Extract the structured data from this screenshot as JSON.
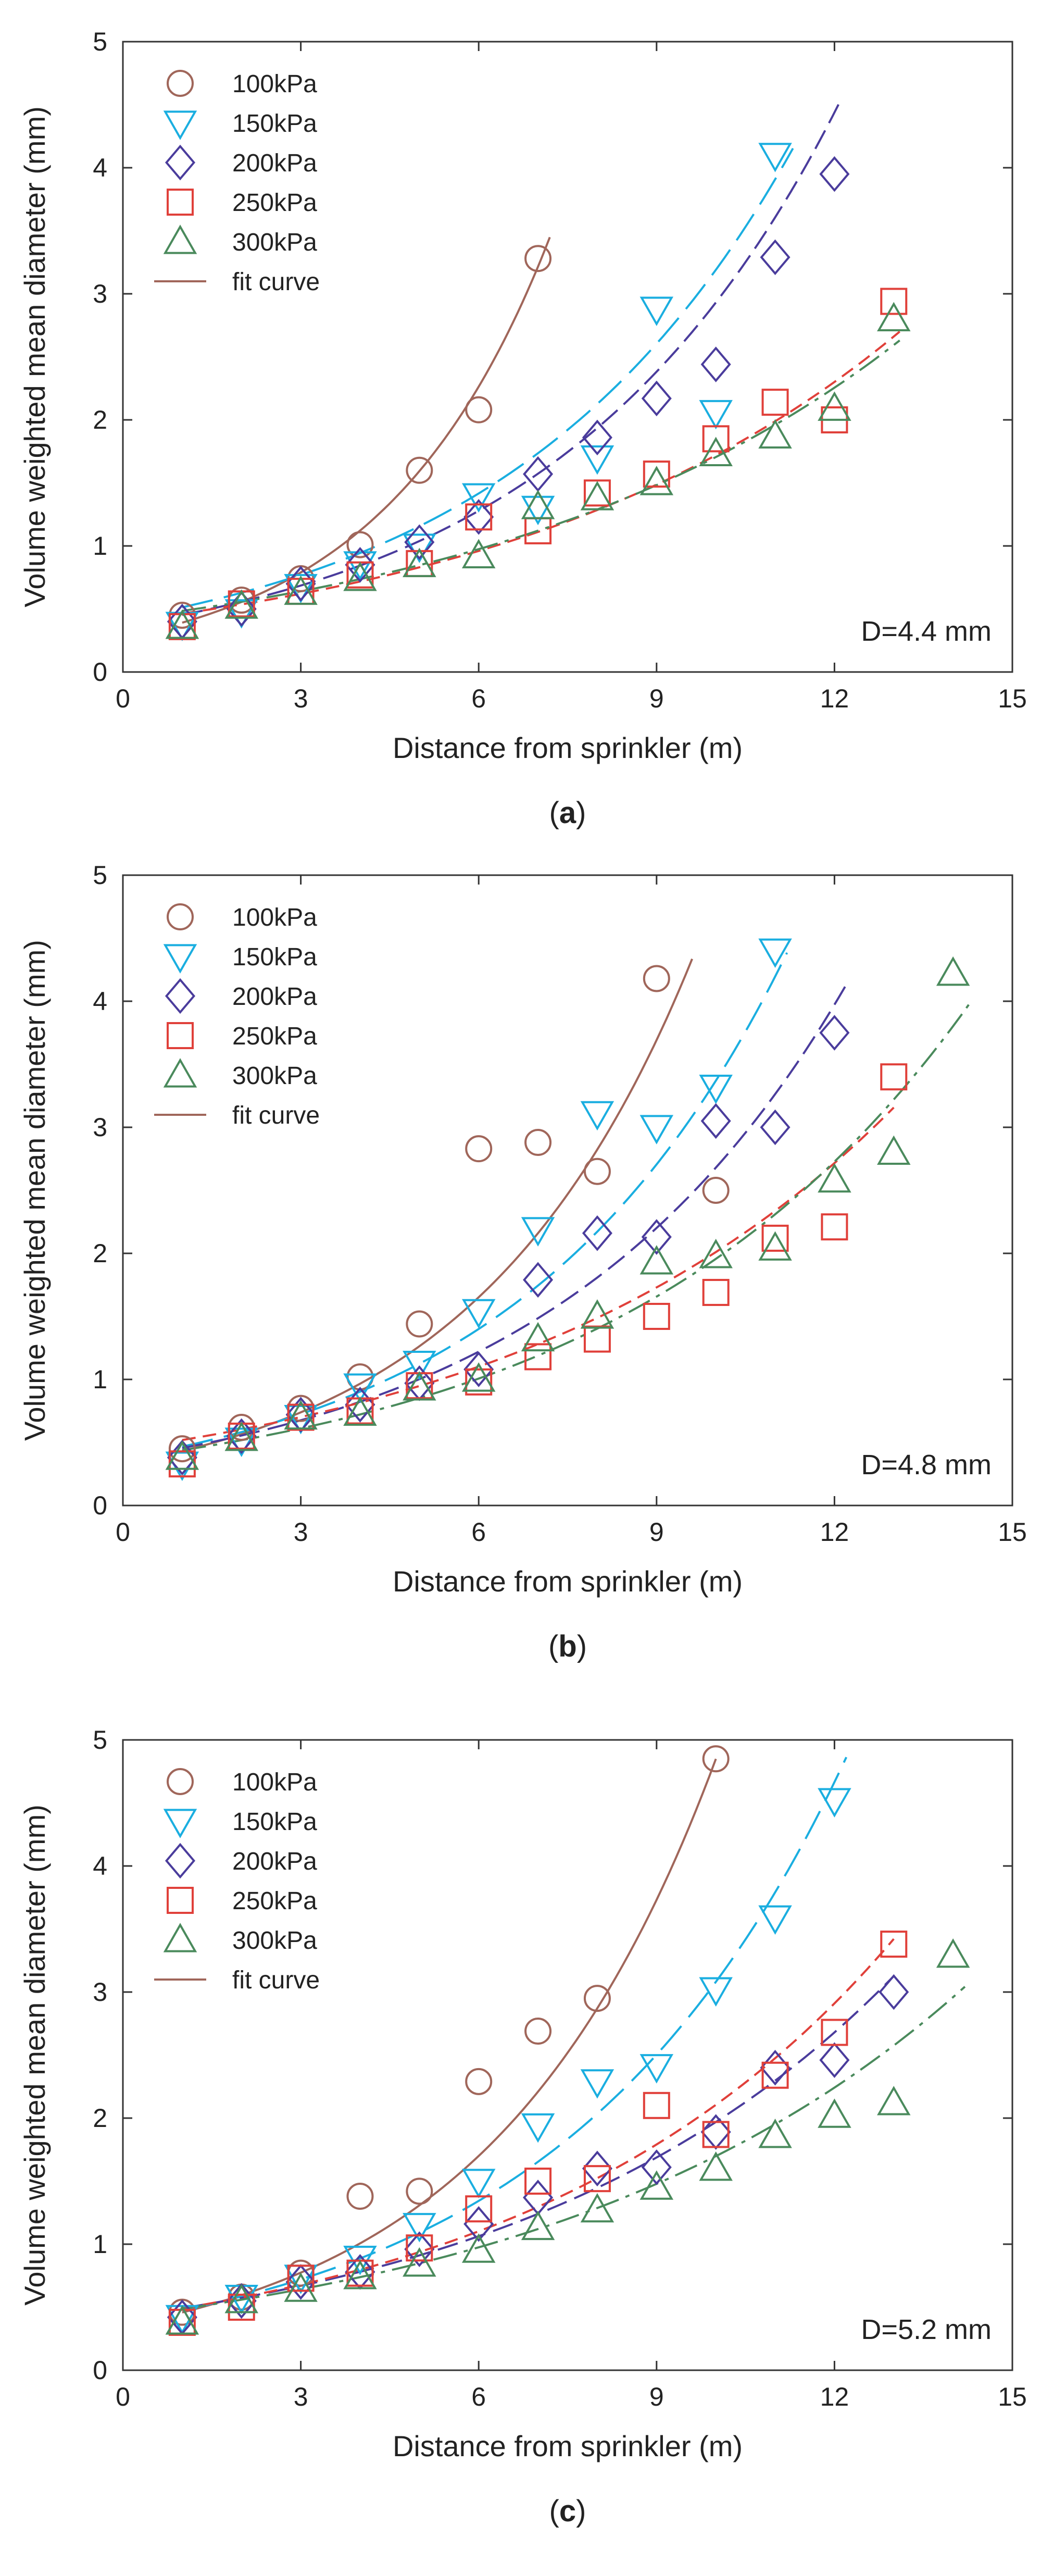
{
  "chart_data": [
    {
      "type": "scatter",
      "panel_label": "a",
      "annotation": "D=4.4 mm",
      "xlabel": "Distance from sprinkler (m)",
      "ylabel": "Volume weighted mean diameter (mm)",
      "xlim": [
        0,
        15
      ],
      "ylim": [
        0,
        5
      ],
      "xticks": [
        "0",
        "3",
        "6",
        "9",
        "12",
        "15"
      ],
      "yticks": [
        "0",
        "1",
        "2",
        "3",
        "4",
        "5"
      ],
      "grid": false,
      "legend_position": "top-left",
      "fit_label": "fit curve",
      "series": [
        {
          "name": "100kPa",
          "marker": "circle",
          "color": "#a0665a",
          "x": [
            1,
            2,
            3,
            4,
            5,
            6,
            7
          ],
          "y": [
            0.45,
            0.57,
            0.74,
            1.01,
            1.6,
            2.08,
            3.28
          ],
          "fit": {
            "a": 0.2755,
            "b": 0.351,
            "x_end": 7.2
          }
        },
        {
          "name": "150kPa",
          "marker": "triangle-down",
          "color": "#1aaee0",
          "x": [
            1,
            2,
            3,
            4,
            5,
            6,
            7,
            8,
            9,
            10,
            11
          ],
          "y": [
            0.38,
            0.48,
            0.68,
            0.86,
            1.0,
            1.4,
            1.3,
            1.7,
            2.88,
            2.06,
            4.1
          ],
          "fit": {
            "a": 0.419,
            "b": 0.203,
            "x_end": 11.3
          }
        },
        {
          "name": "200kPa",
          "marker": "diamond",
          "color": "#4a3c9c",
          "x": [
            1,
            2,
            3,
            4,
            5,
            6,
            7,
            8,
            9,
            10,
            11,
            12
          ],
          "y": [
            0.4,
            0.5,
            0.7,
            0.85,
            1.03,
            1.23,
            1.57,
            1.86,
            2.17,
            2.44,
            3.29,
            3.95
          ],
          "fit": {
            "a": 0.368,
            "b": 0.2075,
            "x_end": 12.1
          }
        },
        {
          "name": "250kPa",
          "marker": "square",
          "color": "#e0403a",
          "x": [
            1,
            2,
            3,
            4,
            5,
            6,
            7,
            8,
            9,
            10,
            11,
            12,
            13
          ],
          "y": [
            0.36,
            0.54,
            0.64,
            0.77,
            0.86,
            1.23,
            1.12,
            1.42,
            1.57,
            1.85,
            2.14,
            2.0,
            2.94
          ],
          "fit": {
            "a": 0.4009,
            "b": 0.1456,
            "x_end": 13.1
          }
        },
        {
          "name": "300kPa",
          "marker": "triangle-up",
          "color": "#4a8a5c",
          "x": [
            1,
            2,
            3,
            4,
            5,
            6,
            7,
            8,
            9,
            10,
            11,
            12,
            13
          ],
          "y": [
            0.36,
            0.52,
            0.63,
            0.74,
            0.85,
            0.92,
            1.31,
            1.38,
            1.5,
            1.73,
            1.87,
            2.09,
            2.8
          ],
          "fit": {
            "a": 0.4213,
            "b": 0.1398,
            "x_end": 13.1
          }
        }
      ]
    },
    {
      "type": "scatter",
      "panel_label": "b",
      "annotation": "D=4.8 mm",
      "xlabel": "Distance from sprinkler (m)",
      "ylabel": "Volume weighted mean diameter (mm)",
      "xlim": [
        0,
        15
      ],
      "ylim": [
        0,
        5
      ],
      "xticks": [
        "0",
        "3",
        "6",
        "9",
        "12",
        "15"
      ],
      "yticks": [
        "0",
        "1",
        "2",
        "3",
        "4",
        "5"
      ],
      "grid": false,
      "legend_position": "top-left",
      "fit_label": "fit curve",
      "series": [
        {
          "name": "100kPa",
          "marker": "circle",
          "color": "#a0665a",
          "x": [
            1,
            2,
            3,
            4,
            5,
            6,
            7,
            8,
            9,
            10
          ],
          "y": [
            0.45,
            0.62,
            0.77,
            1.02,
            1.44,
            2.83,
            2.88,
            2.65,
            4.18,
            2.5
          ],
          "fit": {
            "a": 0.3306,
            "b": 0.2681,
            "x_end": 9.6
          }
        },
        {
          "name": "150kPa",
          "marker": "triangle-down",
          "color": "#1aaee0",
          "x": [
            1,
            2,
            3,
            4,
            5,
            6,
            7,
            8,
            9,
            10,
            11
          ],
          "y": [
            0.33,
            0.52,
            0.7,
            0.95,
            1.13,
            1.54,
            2.19,
            3.11,
            3.0,
            3.32,
            4.4
          ],
          "fit": {
            "a": 0.3752,
            "b": 0.2195,
            "x_end": 11.2
          }
        },
        {
          "name": "200kPa",
          "marker": "diamond",
          "color": "#4a3c9c",
          "x": [
            1,
            2,
            3,
            4,
            5,
            6,
            7,
            8,
            9,
            10,
            11,
            12
          ],
          "y": [
            0.38,
            0.55,
            0.72,
            0.8,
            0.97,
            1.08,
            1.79,
            2.16,
            2.13,
            3.05,
            3.0,
            3.75
          ],
          "fit": {
            "a": 0.3745,
            "b": 0.1968,
            "x_end": 12.2
          }
        },
        {
          "name": "250kPa",
          "marker": "square",
          "color": "#e0403a",
          "x": [
            1,
            2,
            3,
            4,
            5,
            6,
            7,
            8,
            9,
            10,
            11,
            12,
            13
          ],
          "y": [
            0.33,
            0.55,
            0.7,
            0.75,
            0.95,
            0.98,
            1.18,
            1.32,
            1.5,
            1.69,
            2.12,
            2.21,
            3.4
          ],
          "fit": {
            "a": 0.4468,
            "b": 0.1504,
            "x_end": 13.0
          }
        },
        {
          "name": "300kPa",
          "marker": "triangle-up",
          "color": "#4a8a5c",
          "x": [
            1,
            2,
            3,
            4,
            5,
            6,
            7,
            8,
            9,
            10,
            11,
            12,
            13,
            14
          ],
          "y": [
            0.38,
            0.53,
            0.7,
            0.73,
            0.93,
            1.0,
            1.32,
            1.5,
            1.93,
            1.98,
            2.04,
            2.58,
            2.8,
            4.22
          ],
          "fit": {
            "a": 0.3716,
            "b": 0.1661,
            "x_end": 14.3
          }
        }
      ]
    },
    {
      "type": "scatter",
      "panel_label": "c",
      "annotation": "D=5.2 mm",
      "xlabel": "Distance from sprinkler (m)",
      "ylabel": "Volume weighted mean diameter (mm)",
      "xlim": [
        0,
        15
      ],
      "ylim": [
        0,
        5
      ],
      "xticks": [
        "0",
        "3",
        "6",
        "9",
        "12",
        "15"
      ],
      "yticks": [
        "0",
        "1",
        "2",
        "3",
        "4",
        "5"
      ],
      "grid": false,
      "legend_position": "top-left",
      "fit_label": "fit curve",
      "series": [
        {
          "name": "100kPa",
          "marker": "circle",
          "color": "#a0665a",
          "x": [
            1,
            2,
            3,
            4,
            5,
            6,
            7,
            8,
            10
          ],
          "y": [
            0.46,
            0.58,
            0.77,
            1.38,
            1.42,
            2.29,
            2.69,
            2.95,
            4.85
          ],
          "fit": {
            "a": 0.3527,
            "b": 0.2621,
            "x_end": 10.0
          }
        },
        {
          "name": "150kPa",
          "marker": "triangle-down",
          "color": "#1aaee0",
          "x": [
            1,
            2,
            3,
            4,
            5,
            6,
            7,
            8,
            9,
            10,
            11,
            12
          ],
          "y": [
            0.42,
            0.58,
            0.74,
            0.89,
            1.15,
            1.5,
            1.94,
            2.29,
            2.41,
            3.02,
            3.59,
            4.52
          ],
          "fit": {
            "a": 0.3868,
            "b": 0.2075,
            "x_end": 12.2
          }
        },
        {
          "name": "200kPa",
          "marker": "diamond",
          "color": "#4a3c9c",
          "x": [
            1,
            2,
            3,
            4,
            5,
            6,
            7,
            8,
            9,
            10,
            11,
            12,
            13
          ],
          "y": [
            0.42,
            0.55,
            0.7,
            0.78,
            0.96,
            1.16,
            1.37,
            1.6,
            1.61,
            1.89,
            2.4,
            2.46,
            3.0
          ],
          "fit": {
            "a": 0.4217,
            "b": 0.1541,
            "x_end": 13.0
          }
        },
        {
          "name": "250kPa",
          "marker": "square",
          "color": "#e0403a",
          "x": [
            1,
            2,
            3,
            4,
            5,
            6,
            7,
            8,
            9,
            10,
            11,
            12,
            13
          ],
          "y": [
            0.38,
            0.5,
            0.73,
            0.77,
            0.97,
            1.28,
            1.5,
            1.52,
            2.1,
            1.87,
            2.34,
            2.68,
            3.38
          ],
          "fit": {
            "a": 0.4175,
            "b": 0.1618,
            "x_end": 13.0
          }
        },
        {
          "name": "300kPa",
          "marker": "triangle-up",
          "color": "#4a8a5c",
          "x": [
            1,
            2,
            3,
            4,
            5,
            6,
            7,
            8,
            9,
            10,
            11,
            12,
            13,
            14
          ],
          "y": [
            0.38,
            0.55,
            0.64,
            0.74,
            0.84,
            0.95,
            1.13,
            1.27,
            1.45,
            1.6,
            1.86,
            2.02,
            2.12,
            3.29
          ],
          "fit": {
            "a": 0.4239,
            "b": 0.1388,
            "x_end": 14.2
          }
        }
      ]
    }
  ],
  "fit_curve_color": "#a0665a"
}
